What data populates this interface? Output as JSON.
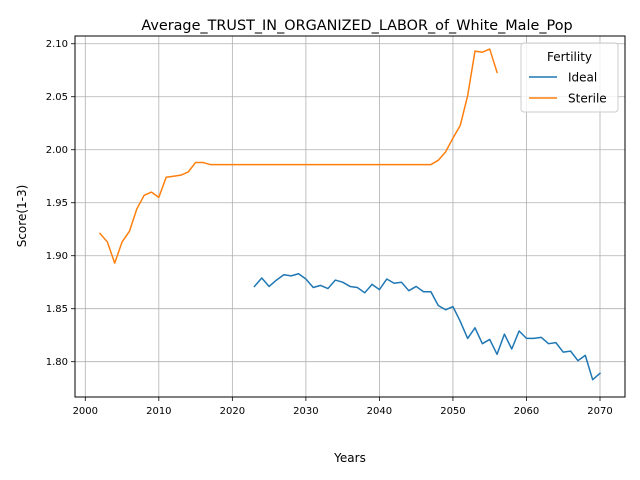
{
  "chart_data": {
    "type": "line",
    "title": "Average_TRUST_IN_ORGANIZED_LABOR_of_White_Male_Pop",
    "xlabel": "Years",
    "ylabel": "Score(1-3)",
    "xlim": [
      1998.6,
      2073.4
    ],
    "ylim": [
      1.7667,
      2.1073
    ],
    "xticks": [
      2000,
      2010,
      2020,
      2030,
      2040,
      2050,
      2060,
      2070
    ],
    "xtick_labels": [
      "2000",
      "2010",
      "2020",
      "2030",
      "2040",
      "2050",
      "2060",
      "2070"
    ],
    "yticks": [
      1.8,
      1.85,
      1.9,
      1.95,
      2.0,
      2.05,
      2.1
    ],
    "ytick_labels": [
      "1.80",
      "1.85",
      "1.90",
      "1.95",
      "2.00",
      "2.05",
      "2.10"
    ],
    "grid": true,
    "legend": {
      "title": "Fertility",
      "placement": "top-right"
    },
    "series": [
      {
        "name": "Ideal",
        "color": "#1f77b4",
        "x": [
          2023,
          2024,
          2025,
          2026,
          2027,
          2028,
          2029,
          2030,
          2031,
          2032,
          2033,
          2034,
          2035,
          2036,
          2037,
          2038,
          2039,
          2040,
          2041,
          2042,
          2043,
          2044,
          2045,
          2046,
          2047,
          2048,
          2049,
          2050,
          2051,
          2052,
          2053,
          2054,
          2055,
          2056,
          2057,
          2058,
          2059,
          2060,
          2061,
          2062,
          2063,
          2064,
          2065,
          2066,
          2067,
          2068,
          2069,
          2070
        ],
        "y": [
          1.871,
          1.879,
          1.871,
          1.877,
          1.882,
          1.881,
          1.883,
          1.878,
          1.87,
          1.872,
          1.869,
          1.877,
          1.875,
          1.871,
          1.87,
          1.865,
          1.873,
          1.868,
          1.878,
          1.874,
          1.875,
          1.867,
          1.871,
          1.866,
          1.866,
          1.853,
          1.849,
          1.852,
          1.838,
          1.822,
          1.832,
          1.817,
          1.821,
          1.807,
          1.826,
          1.812,
          1.829,
          1.822,
          1.822,
          1.823,
          1.817,
          1.818,
          1.809,
          1.81,
          1.801,
          1.806,
          1.783,
          1.789
        ]
      },
      {
        "name": "Sterile",
        "color": "#ff7f0e",
        "x": [
          2002,
          2003,
          2004,
          2005,
          2006,
          2007,
          2008,
          2009,
          2010,
          2011,
          2012,
          2013,
          2014,
          2015,
          2016,
          2017,
          2018,
          2019,
          2020,
          2021,
          2022,
          2023,
          2024,
          2025,
          2026,
          2027,
          2028,
          2029,
          2030,
          2031,
          2032,
          2033,
          2034,
          2035,
          2036,
          2037,
          2038,
          2039,
          2040,
          2041,
          2042,
          2043,
          2044,
          2045,
          2046,
          2047,
          2048,
          2049,
          2050,
          2051,
          2052,
          2053,
          2054,
          2055,
          2056
        ],
        "y": [
          1.921,
          1.913,
          1.893,
          1.913,
          1.923,
          1.944,
          1.957,
          1.96,
          1.955,
          1.974,
          1.975,
          1.976,
          1.979,
          1.988,
          1.988,
          1.986,
          1.986,
          1.986,
          1.986,
          1.986,
          1.986,
          1.986,
          1.986,
          1.986,
          1.986,
          1.986,
          1.986,
          1.986,
          1.986,
          1.986,
          1.986,
          1.986,
          1.986,
          1.986,
          1.986,
          1.986,
          1.986,
          1.986,
          1.986,
          1.986,
          1.986,
          1.986,
          1.986,
          1.986,
          1.986,
          1.986,
          1.99,
          1.998,
          2.011,
          2.023,
          2.051,
          2.093,
          2.092,
          2.095,
          2.073
        ]
      }
    ]
  }
}
